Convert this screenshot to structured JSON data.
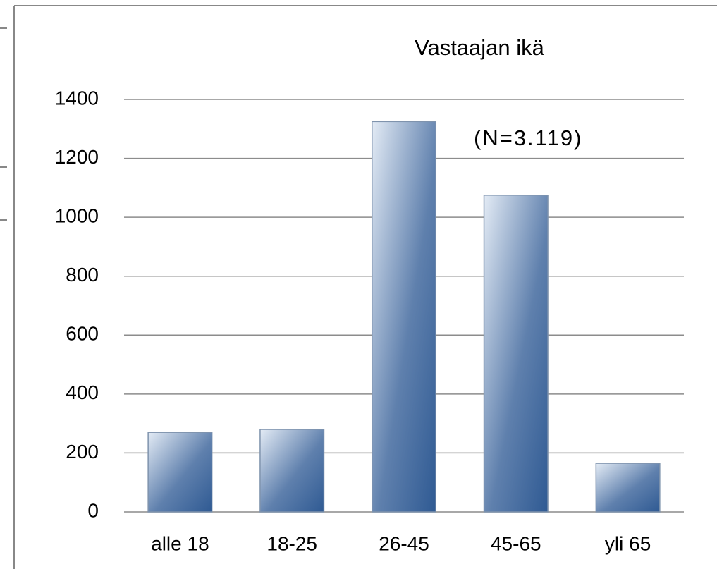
{
  "chart_data": {
    "type": "bar",
    "title": "Vastaajan ikä",
    "annotation": "(N=3.119)",
    "categories": [
      "alle 18",
      "18-25",
      "26-45",
      "45-65",
      "yli 65"
    ],
    "values": [
      270,
      280,
      1325,
      1075,
      165
    ],
    "color": "#2f5a93",
    "ylim": [
      0,
      1400
    ],
    "yticks": [
      0,
      200,
      400,
      600,
      800,
      1000,
      1200,
      1400
    ],
    "grid": true
  }
}
